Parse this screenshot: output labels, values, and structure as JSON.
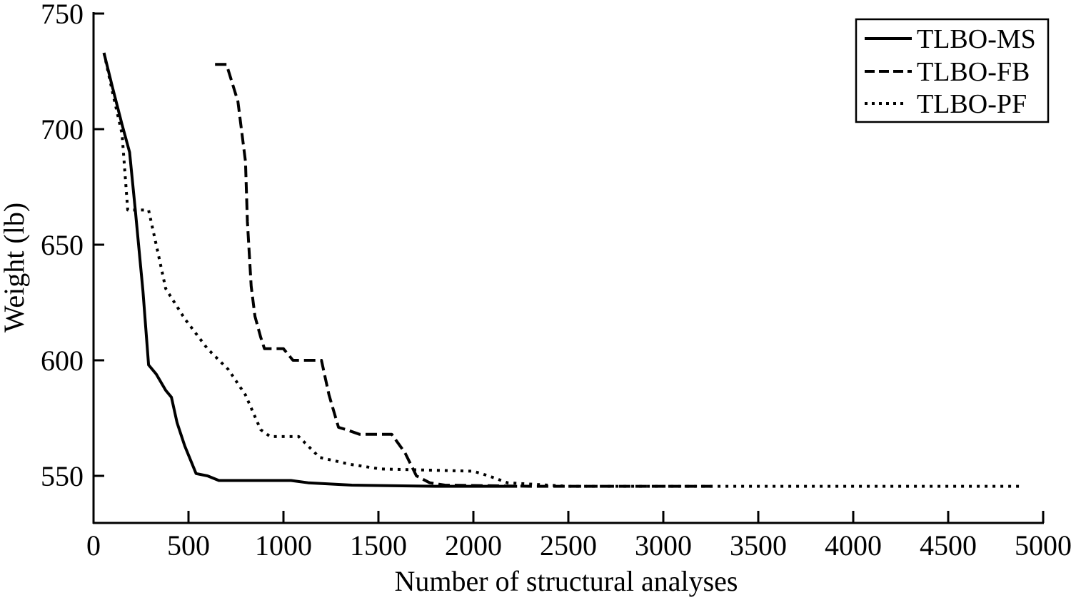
{
  "chart_data": {
    "type": "line",
    "title": "",
    "xlabel": "Number of structural analyses",
    "ylabel": "Weight (lb)",
    "xlim": [
      0,
      5000
    ],
    "ylim": [
      530,
      750
    ],
    "xticks": [
      0,
      500,
      1000,
      1500,
      2000,
      2500,
      3000,
      3500,
      4000,
      4500,
      5000
    ],
    "yticks": [
      550,
      600,
      650,
      700,
      750
    ],
    "grid": false,
    "legend_position": "upper right",
    "series": [
      {
        "name": "TLBO-MS",
        "style": "solid",
        "x": [
          55,
          100,
          150,
          190,
          220,
          260,
          290,
          330,
          380,
          410,
          440,
          480,
          520,
          540,
          600,
          660,
          800,
          1040,
          1130,
          1360,
          1800,
          2230
        ],
        "y": [
          733,
          718,
          702,
          690,
          665,
          630,
          598,
          594,
          587,
          584,
          573,
          563,
          555,
          551,
          550,
          548,
          548,
          548,
          547,
          546,
          545.5,
          545.5
        ]
      },
      {
        "name": "TLBO-FB",
        "style": "dashed",
        "x": [
          640,
          700,
          760,
          800,
          810,
          830,
          850,
          880,
          900,
          1000,
          1050,
          1200,
          1240,
          1290,
          1330,
          1400,
          1570,
          1640,
          1700,
          1770,
          1850,
          2300,
          2800,
          3270
        ],
        "y": [
          728,
          728,
          712,
          686,
          660,
          632,
          619,
          610,
          605,
          605,
          600,
          600,
          585,
          571,
          570,
          568,
          568,
          560,
          550,
          547,
          546,
          545.5,
          545.5,
          545.5
        ]
      },
      {
        "name": "TLBO-PF",
        "style": "dotted",
        "x": [
          55,
          100,
          150,
          180,
          290,
          330,
          380,
          480,
          600,
          710,
          800,
          880,
          930,
          1080,
          1190,
          1350,
          1510,
          2000,
          2080,
          2180,
          2500,
          3000,
          4000,
          4890
        ],
        "y": [
          733,
          716,
          698,
          665,
          665,
          650,
          631,
          618,
          605,
          596,
          585,
          570,
          567,
          567,
          558,
          555,
          553,
          552,
          550,
          547,
          545.5,
          545.5,
          545.5,
          545.5
        ]
      }
    ]
  },
  "legend": {
    "items": [
      {
        "label": "TLBO-MS",
        "style": "solid"
      },
      {
        "label": "TLBO-FB",
        "style": "dashed"
      },
      {
        "label": "TLBO-PF",
        "style": "dotted"
      }
    ]
  },
  "axes": {
    "x_title": "Number of structural analyses",
    "y_title": "Weight (lb)"
  },
  "colors": {
    "line": "#000000",
    "background": "#ffffff"
  }
}
